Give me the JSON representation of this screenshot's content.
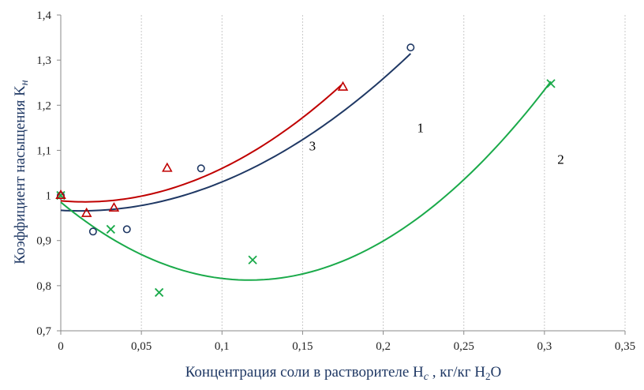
{
  "chart_data": {
    "type": "scatter",
    "title": "",
    "xlabel": "Концентрация соли в растворителе H",
    "xlabel_sub": "c",
    "xlabel_tail": " , кг/кг H",
    "xlabel_sub2": "2",
    "xlabel_end": "O",
    "ylabel": "Коэффициент насыщения K",
    "ylabel_sub": "н",
    "xlim": [
      0,
      0.35
    ],
    "ylim": [
      0.7,
      1.4
    ],
    "xticks": [
      "0",
      "0,05",
      "0,1",
      "0,15",
      "0,2",
      "0,25",
      "0,3",
      "0,35"
    ],
    "yticks": [
      "0,7",
      "0,8",
      "0,9",
      "1",
      "1,1",
      "1,2",
      "1,3",
      "1,4"
    ],
    "grid": "vertical",
    "series": [
      {
        "marker": "circle",
        "color": "#1f3864",
        "points": [
          [
            0,
            1.0
          ],
          [
            0.02,
            0.92
          ],
          [
            0.041,
            0.925
          ],
          [
            0.087,
            1.06
          ],
          [
            0.217,
            1.328
          ]
        ],
        "trend": [
          0.967,
          -0.2,
          8.3
        ],
        "trend_range": [
          0,
          0.217
        ]
      },
      {
        "marker": "cross",
        "color": "#1aaa4a",
        "points": [
          [
            0,
            1.0
          ],
          [
            0.031,
            0.925
          ],
          [
            0.061,
            0.785
          ],
          [
            0.119,
            0.857
          ],
          [
            0.304,
            1.248
          ]
        ],
        "trend": [
          0.985,
          -2.95,
          12.6
        ],
        "trend_range": [
          0,
          0.304
        ]
      },
      {
        "marker": "triangle",
        "color": "#c00000",
        "points": [
          [
            0,
            1.0
          ],
          [
            0.016,
            0.96
          ],
          [
            0.033,
            0.972
          ],
          [
            0.066,
            1.06
          ],
          [
            0.175,
            1.24
          ]
        ],
        "trend": [
          0.988,
          -0.3,
          10.2
        ],
        "trend_range": [
          0,
          0.174
        ]
      }
    ],
    "curve_labels": [
      {
        "text": "1",
        "x": 0.221,
        "y": 1.14
      },
      {
        "text": "2",
        "x": 0.308,
        "y": 1.07
      },
      {
        "text": "3",
        "x": 0.154,
        "y": 1.1
      }
    ]
  }
}
